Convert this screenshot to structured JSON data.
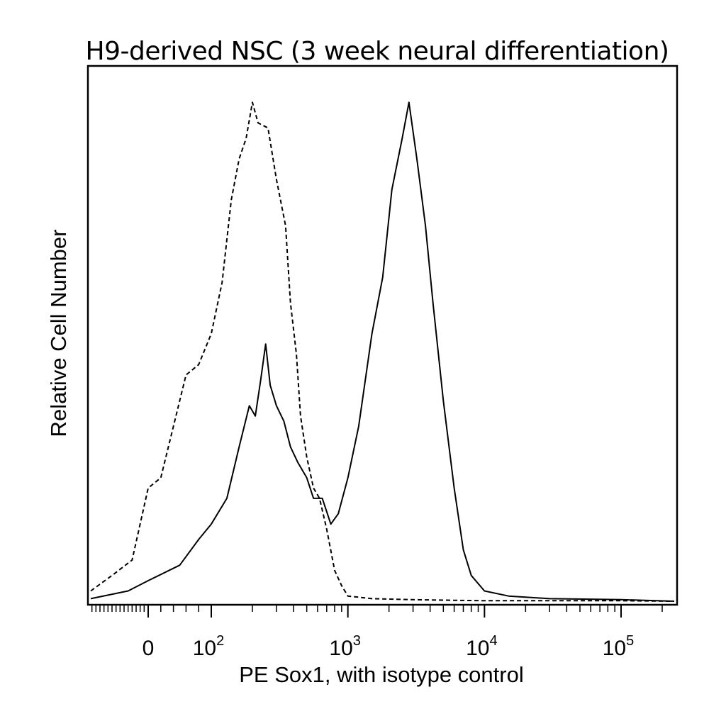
{
  "chart_data": {
    "type": "line",
    "title": "H9-derived NSC (3 week neural differentiation)",
    "xlabel": "PE Sox1, with isotype control",
    "ylabel": "Relative Cell Number",
    "xscale": "biexponential (log above 10^2)",
    "xlim": [
      -300,
      250000
    ],
    "ylim": [
      0,
      1
    ],
    "grid": false,
    "legend": "none",
    "x_ticks": [
      {
        "base": "0",
        "exp": ""
      },
      {
        "base": "10",
        "exp": "2"
      },
      {
        "base": "10",
        "exp": "3"
      },
      {
        "base": "10",
        "exp": "4"
      },
      {
        "base": "10",
        "exp": "5"
      }
    ],
    "series": [
      {
        "style": "dashed",
        "points": [
          [
            -300,
            0.02
          ],
          [
            -180,
            0.05
          ],
          [
            -80,
            0.08
          ],
          [
            0,
            0.22
          ],
          [
            20,
            0.24
          ],
          [
            60,
            0.44
          ],
          [
            80,
            0.46
          ],
          [
            100,
            0.52
          ],
          [
            120,
            0.62
          ],
          [
            140,
            0.78
          ],
          [
            160,
            0.86
          ],
          [
            180,
            0.9
          ],
          [
            200,
            0.97
          ],
          [
            220,
            0.93
          ],
          [
            260,
            0.92
          ],
          [
            300,
            0.82
          ],
          [
            350,
            0.73
          ],
          [
            380,
            0.58
          ],
          [
            420,
            0.48
          ],
          [
            450,
            0.36
          ],
          [
            500,
            0.28
          ],
          [
            560,
            0.22
          ],
          [
            620,
            0.2
          ],
          [
            700,
            0.14
          ],
          [
            800,
            0.06
          ],
          [
            900,
            0.03
          ],
          [
            1000,
            0.01
          ],
          [
            1500,
            0.005
          ],
          [
            3000,
            0.003
          ],
          [
            5000,
            0.002
          ],
          [
            10000,
            0.001
          ],
          [
            100000,
            0.001
          ],
          [
            250000,
            0.0
          ]
        ]
      },
      {
        "style": "solid",
        "points": [
          [
            -300,
            0.005
          ],
          [
            -100,
            0.02
          ],
          [
            0,
            0.04
          ],
          [
            50,
            0.07
          ],
          [
            80,
            0.12
          ],
          [
            100,
            0.15
          ],
          [
            130,
            0.2
          ],
          [
            160,
            0.3
          ],
          [
            190,
            0.38
          ],
          [
            210,
            0.36
          ],
          [
            230,
            0.43
          ],
          [
            250,
            0.5
          ],
          [
            270,
            0.42
          ],
          [
            300,
            0.38
          ],
          [
            340,
            0.35
          ],
          [
            380,
            0.3
          ],
          [
            430,
            0.27
          ],
          [
            500,
            0.24
          ],
          [
            560,
            0.2
          ],
          [
            650,
            0.2
          ],
          [
            750,
            0.15
          ],
          [
            850,
            0.17
          ],
          [
            1000,
            0.24
          ],
          [
            1200,
            0.34
          ],
          [
            1500,
            0.52
          ],
          [
            1800,
            0.63
          ],
          [
            2100,
            0.8
          ],
          [
            2500,
            0.9
          ],
          [
            2800,
            0.97
          ],
          [
            3200,
            0.86
          ],
          [
            3700,
            0.73
          ],
          [
            4200,
            0.58
          ],
          [
            5000,
            0.39
          ],
          [
            6000,
            0.22
          ],
          [
            7000,
            0.1
          ],
          [
            8000,
            0.05
          ],
          [
            10000,
            0.02
          ],
          [
            15000,
            0.01
          ],
          [
            30000,
            0.005
          ],
          [
            100000,
            0.003
          ],
          [
            250000,
            0.0
          ]
        ]
      }
    ]
  }
}
